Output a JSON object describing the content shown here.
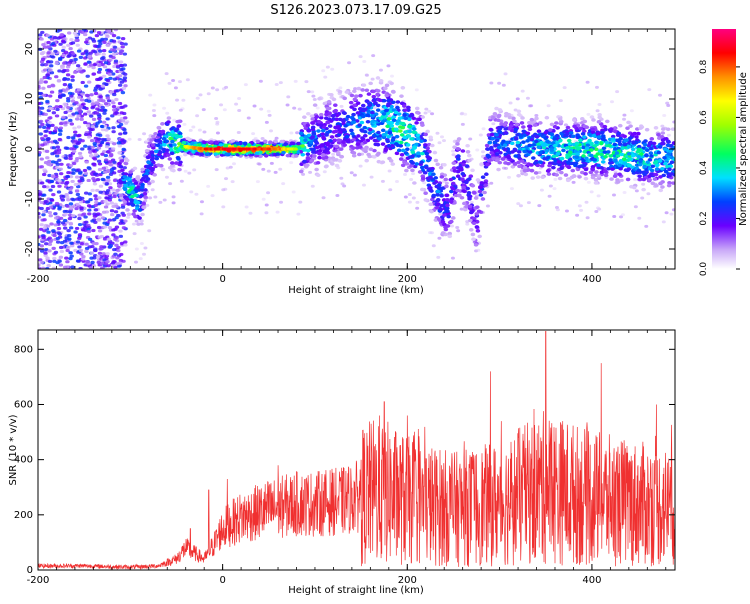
{
  "page_title": "S126.2023.073.17.09.G25",
  "chart_data": [
    {
      "type": "heatmap",
      "xlabel": "Height of straight line (km)",
      "ylabel": "Frequency (Hz)",
      "xlim": [
        -200,
        490
      ],
      "ylim": [
        -24,
        24
      ],
      "x_ticks": [
        -200,
        0,
        200,
        400
      ],
      "y_ticks": [
        -20,
        -10,
        0,
        10,
        20
      ],
      "colorbar": {
        "label": "Normalized spectral amplitude",
        "range": [
          0,
          0.95
        ],
        "ticks": [
          0.0,
          0.2,
          0.4,
          0.6,
          0.8
        ]
      },
      "ridge": [
        [
          -112,
          -5,
          0.25
        ],
        [
          -100,
          -8,
          0.45
        ],
        [
          -90,
          -11,
          0.35
        ],
        [
          -80,
          -3,
          0.3
        ],
        [
          -70,
          0,
          0.3
        ],
        [
          -60,
          2,
          0.4
        ],
        [
          -50,
          1,
          0.55
        ],
        [
          -40,
          0.5,
          0.7
        ],
        [
          -20,
          0,
          0.85
        ],
        [
          0,
          0,
          0.9
        ],
        [
          20,
          0,
          0.9
        ],
        [
          40,
          0,
          0.88
        ],
        [
          60,
          0,
          0.85
        ],
        [
          80,
          0,
          0.6
        ],
        [
          100,
          2,
          0.3
        ],
        [
          120,
          4,
          0.25
        ],
        [
          140,
          5,
          0.3
        ],
        [
          160,
          6,
          0.35
        ],
        [
          180,
          5,
          0.45
        ],
        [
          200,
          3,
          0.5
        ],
        [
          215,
          0,
          0.4
        ],
        [
          225,
          -5,
          0.3
        ],
        [
          235,
          -10,
          0.3
        ],
        [
          245,
          -12,
          0.25
        ],
        [
          255,
          -3,
          0.25
        ],
        [
          265,
          -6,
          0.25
        ],
        [
          275,
          -15,
          0.2
        ],
        [
          290,
          2,
          0.3
        ],
        [
          320,
          1,
          0.35
        ],
        [
          350,
          0,
          0.4
        ],
        [
          380,
          0,
          0.45
        ],
        [
          410,
          0,
          0.45
        ],
        [
          440,
          -1,
          0.45
        ],
        [
          470,
          -2,
          0.4
        ],
        [
          490,
          -2,
          0.4
        ]
      ]
    },
    {
      "type": "line",
      "xlabel": "Height of straight line (km)",
      "ylabel": "SNR (10 * v/v)",
      "xlim": [
        -200,
        490
      ],
      "ylim": [
        0,
        870
      ],
      "x_ticks": [
        -200,
        0,
        200,
        400
      ],
      "y_ticks": [
        0,
        200,
        400,
        600,
        800
      ],
      "series": [
        {
          "color": "#f03030",
          "x": [
            -200,
            -150,
            -100,
            -70,
            -50,
            -40,
            -30,
            -20,
            -10,
            0,
            20,
            50,
            80,
            100,
            130,
            150,
            170,
            200,
            250,
            300,
            350,
            400,
            450,
            490
          ],
          "y": [
            15,
            15,
            10,
            15,
            40,
            80,
            60,
            40,
            90,
            150,
            190,
            220,
            240,
            240,
            250,
            270,
            290,
            250,
            220,
            240,
            300,
            260,
            240,
            230
          ],
          "peaks": [
            [
              -35,
              150
            ],
            [
              -15,
              290
            ],
            [
              5,
              330
            ],
            [
              60,
              380
            ],
            [
              150,
              400
            ],
            [
              175,
              610
            ],
            [
              200,
              560
            ],
            [
              290,
              720
            ],
            [
              350,
              865
            ],
            [
              410,
              750
            ],
            [
              470,
              600
            ]
          ]
        }
      ]
    }
  ]
}
